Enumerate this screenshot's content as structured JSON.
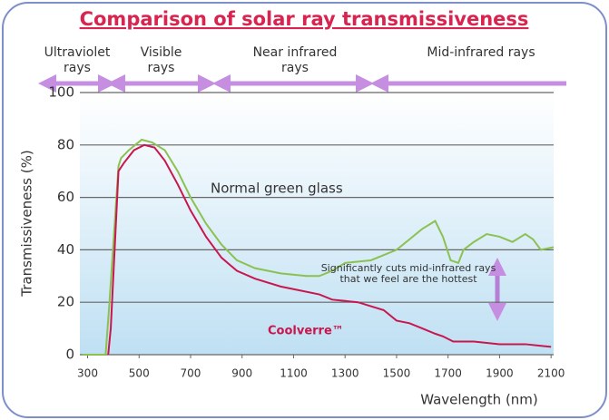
{
  "chart_data": {
    "type": "line",
    "title": "Comparison of solar ray transmissiveness",
    "bands": [
      "Ultraviolet rays",
      "Visible rays",
      "Near infrared rays",
      "Mid-infrared rays"
    ],
    "xlabel": "Wavelength (nm)",
    "ylabel": "Transmissiveness (%)",
    "xlim": [
      270,
      2110
    ],
    "ylim": [
      0,
      100
    ],
    "xticks": [
      300,
      500,
      700,
      900,
      1100,
      1300,
      1500,
      1700,
      1900,
      2100
    ],
    "yticks": [
      0,
      20,
      40,
      60,
      80,
      100
    ],
    "grid": true,
    "series": [
      {
        "name": "Normal green glass",
        "color": "#8cc152",
        "x": [
          280,
          370,
          385,
          420,
          430,
          460,
          510,
          550,
          600,
          650,
          700,
          760,
          820,
          880,
          950,
          1050,
          1150,
          1200,
          1250,
          1300,
          1400,
          1450,
          1500,
          1550,
          1600,
          1650,
          1680,
          1710,
          1740,
          1760,
          1800,
          1850,
          1900,
          1950,
          2000,
          2030,
          2060,
          2110
        ],
        "values": [
          0,
          0,
          20,
          72,
          75,
          78,
          82,
          81,
          78,
          70,
          60,
          50,
          42,
          36,
          33,
          31,
          30,
          30,
          32,
          35,
          36,
          38,
          40,
          44,
          48,
          51,
          45,
          36,
          35,
          40,
          43,
          46,
          45,
          43,
          46,
          44,
          40,
          41
        ]
      },
      {
        "name": "Coolverre™",
        "color": "#c8174f",
        "x": [
          380,
          390,
          420,
          440,
          480,
          520,
          560,
          600,
          650,
          700,
          760,
          820,
          880,
          950,
          1050,
          1100,
          1200,
          1250,
          1350,
          1450,
          1500,
          1550,
          1600,
          1650,
          1680,
          1720,
          1800,
          1900,
          2000,
          2100
        ],
        "values": [
          0,
          10,
          70,
          73,
          78,
          80,
          79,
          74,
          65,
          55,
          45,
          37,
          32,
          29,
          26,
          25,
          23,
          21,
          20,
          17,
          13,
          12,
          10,
          8,
          7,
          5,
          5,
          4,
          4,
          3
        ]
      }
    ],
    "annotation": "Significantly cuts mid-infrared rays that we feel are the hottest"
  }
}
